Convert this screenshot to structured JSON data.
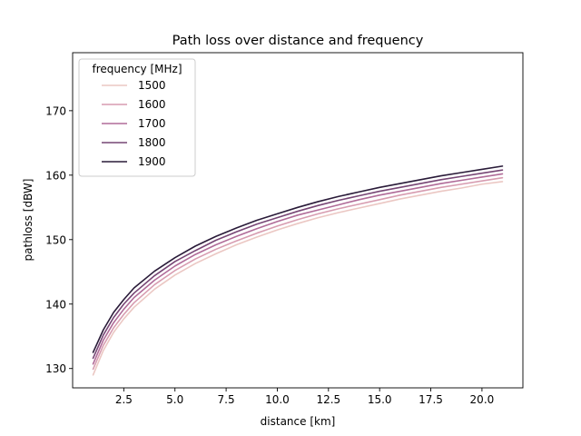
{
  "chart_data": {
    "type": "line",
    "title": "Path loss over distance and frequency",
    "xlabel": "distance [km]",
    "ylabel": "pathloss [dBW]",
    "xlim": [
      0.0,
      22.0
    ],
    "ylim": [
      127.0,
      179.0
    ],
    "x_ticks": [
      2.5,
      5.0,
      7.5,
      10.0,
      12.5,
      15.0,
      17.5,
      20.0
    ],
    "x_tick_labels": [
      "2.5",
      "5.0",
      "7.5",
      "10.0",
      "12.5",
      "15.0",
      "17.5",
      "20.0"
    ],
    "y_ticks": [
      130,
      140,
      150,
      160,
      170
    ],
    "y_tick_labels": [
      "130",
      "140",
      "150",
      "160",
      "170"
    ],
    "grid": false,
    "legend": {
      "title": "frequency [MHz]",
      "position": "top-left"
    },
    "x": [
      1,
      1.5,
      2,
      2.5,
      3,
      4,
      5,
      6,
      7,
      8,
      9,
      10,
      11,
      12,
      13,
      14,
      15,
      16,
      17,
      18,
      19,
      20,
      21
    ],
    "series": [
      {
        "name": "1500",
        "color": "#ebc7c3",
        "values": [
          129.0,
          132.8,
          135.6,
          137.7,
          139.5,
          142.3,
          144.5,
          146.3,
          147.8,
          149.2,
          150.4,
          151.5,
          152.5,
          153.4,
          154.2,
          154.9,
          155.6,
          156.3,
          156.9,
          157.5,
          158.0,
          158.6,
          159.0
        ]
      },
      {
        "name": "1600",
        "color": "#d79cb0",
        "values": [
          129.9,
          133.6,
          136.3,
          138.4,
          140.2,
          143.0,
          145.2,
          147.0,
          148.5,
          149.8,
          151.0,
          152.1,
          153.1,
          154.0,
          154.8,
          155.5,
          156.2,
          156.9,
          157.5,
          158.1,
          158.6,
          159.1,
          159.6
        ]
      },
      {
        "name": "1700",
        "color": "#b06b98",
        "values": [
          130.7,
          134.4,
          137.1,
          139.2,
          141.0,
          143.7,
          145.9,
          147.7,
          149.2,
          150.5,
          151.7,
          152.8,
          153.8,
          154.6,
          155.4,
          156.2,
          156.9,
          157.5,
          158.1,
          158.7,
          159.2,
          159.7,
          160.2
        ]
      },
      {
        "name": "1800",
        "color": "#774675",
        "values": [
          131.6,
          135.2,
          137.9,
          140.0,
          141.7,
          144.4,
          146.6,
          148.3,
          149.9,
          151.2,
          152.4,
          153.4,
          154.4,
          155.3,
          156.1,
          156.8,
          157.5,
          158.1,
          158.7,
          159.3,
          159.8,
          160.3,
          160.8
        ]
      },
      {
        "name": "1900",
        "color": "#2a1b39",
        "values": [
          132.5,
          136.0,
          138.7,
          140.7,
          142.5,
          145.1,
          147.2,
          149.0,
          150.5,
          151.8,
          153.0,
          154.0,
          155.0,
          155.9,
          156.7,
          157.4,
          158.1,
          158.7,
          159.3,
          159.9,
          160.4,
          160.9,
          161.4
        ]
      }
    ]
  }
}
